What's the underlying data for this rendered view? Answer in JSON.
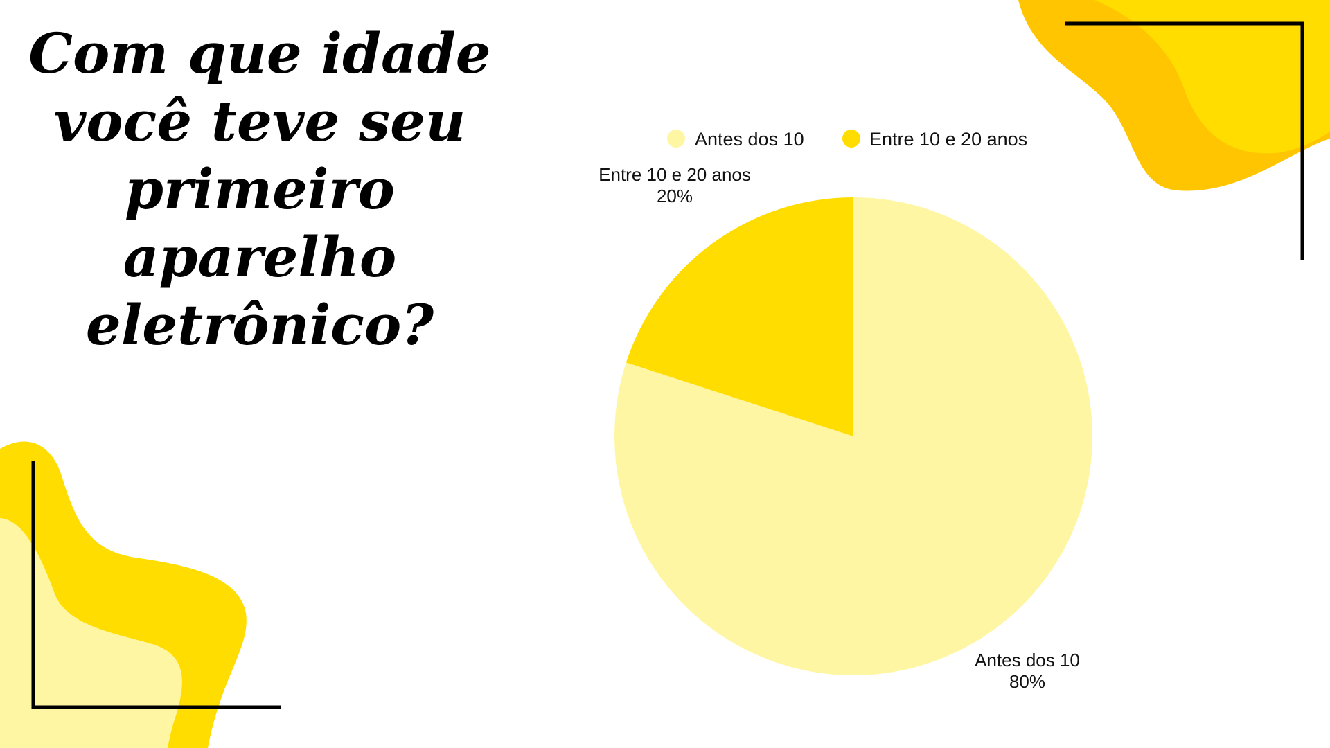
{
  "page": {
    "title": "Com que idade você teve seu primeiro aparelho eletrônico?"
  },
  "colors": {
    "background": "#ffffff",
    "accent_yellow": "#FFDD00",
    "accent_orange": "#FFC500",
    "accent_pale": "#FFF6A3",
    "frame_line": "#000000"
  },
  "chart_data": {
    "type": "pie",
    "title": "",
    "legend_position": "top",
    "categories": [
      "Antes dos 10",
      "Entre 10 e 20 anos"
    ],
    "values": [
      80,
      20
    ],
    "percent_labels": [
      "80%",
      "20%"
    ],
    "colors": [
      "#FFF6A3",
      "#FFDD00"
    ]
  }
}
